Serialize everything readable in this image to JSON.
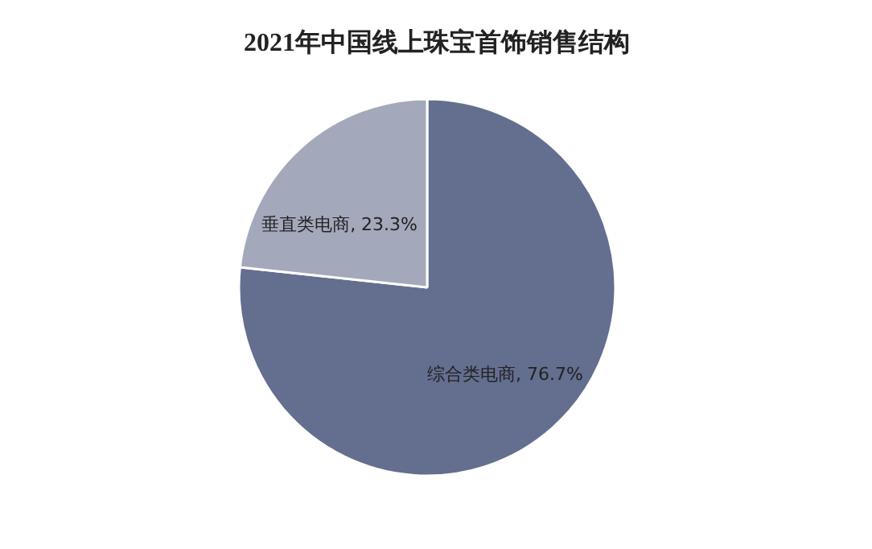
{
  "chart_data": {
    "type": "pie",
    "title": "2021年中国线上珠宝首饰销售结构",
    "categories": [
      "综合类电商",
      "垂直类电商"
    ],
    "values": [
      76.7,
      23.3
    ],
    "colors": [
      "#646e8f",
      "#a4a8bb"
    ],
    "value_labels": [
      "76.7%",
      "23.3%"
    ]
  }
}
